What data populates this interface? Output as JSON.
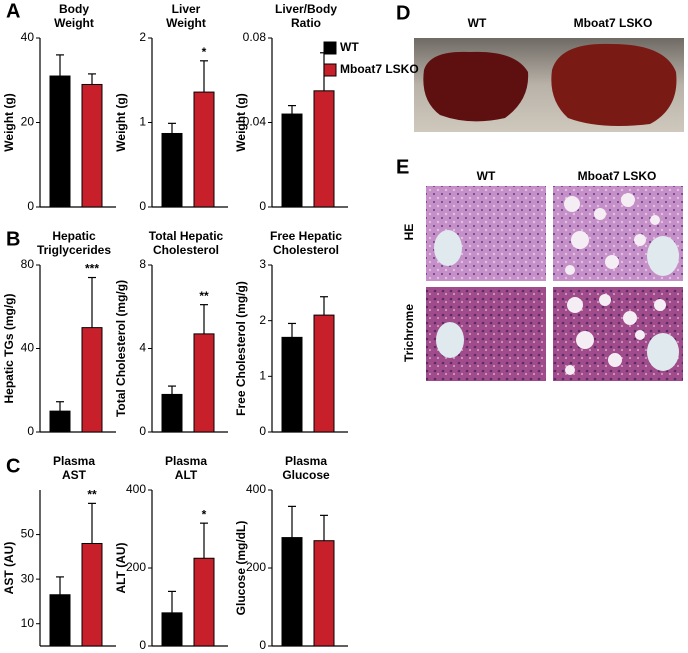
{
  "chart_data": [
    {
      "type": "bar",
      "title": [
        "Body",
        "Weight"
      ],
      "ylabel": "Weight (g)",
      "ylim": [
        0,
        40
      ],
      "yticks": [
        0,
        20,
        40
      ],
      "values": [
        31,
        29
      ],
      "errors": [
        5,
        2.5
      ]
    },
    {
      "type": "bar",
      "title": [
        "Liver",
        "Weight"
      ],
      "ylabel": "Weight (g)",
      "ylim": [
        0,
        2
      ],
      "yticks": [
        0,
        1,
        2
      ],
      "values": [
        0.87,
        1.36
      ],
      "errors": [
        0.12,
        0.37
      ],
      "annotation": "*"
    },
    {
      "type": "bar",
      "title": [
        "Liver/Body",
        "Ratio"
      ],
      "ylabel": "Weight (g)",
      "ylim": [
        0,
        0.08
      ],
      "yticks": [
        0,
        0.04,
        0.08
      ],
      "values": [
        0.044,
        0.055
      ],
      "errors": [
        0.004,
        0.018
      ]
    },
    {
      "type": "bar",
      "title": [
        "Hepatic",
        "Triglycerides"
      ],
      "ylabel": "Hepatic TGs (mg/g)",
      "ylim": [
        0,
        80
      ],
      "yticks": [
        0,
        40,
        80
      ],
      "values": [
        10,
        50
      ],
      "errors": [
        4.5,
        24
      ],
      "annotation": "***"
    },
    {
      "type": "bar",
      "title": [
        "Total Hepatic",
        "Cholesterol"
      ],
      "ylabel": "Total Cholesterol (mg/g)",
      "ylim": [
        0,
        8
      ],
      "yticks": [
        0,
        4,
        8
      ],
      "values": [
        1.8,
        4.7
      ],
      "errors": [
        0.4,
        1.4
      ],
      "annotation": "**"
    },
    {
      "type": "bar",
      "title": [
        "Free Hepatic",
        "Cholesterol"
      ],
      "ylabel": "Free Cholesterol (mg/g)",
      "ylim": [
        0,
        3
      ],
      "yticks": [
        0,
        1,
        2,
        3
      ],
      "values": [
        1.7,
        2.1
      ],
      "errors": [
        0.25,
        0.33
      ]
    },
    {
      "type": "bar",
      "title": [
        "Plasma",
        "AST"
      ],
      "ylabel": "AST (AU)",
      "ylim": [
        0,
        70
      ],
      "yticks": [
        10,
        30,
        50
      ],
      "values": [
        23,
        46
      ],
      "errors": [
        8,
        18
      ],
      "annotation": "**"
    },
    {
      "type": "bar",
      "title": [
        "Plasma",
        "ALT"
      ],
      "ylabel": "ALT (AU)",
      "ylim": [
        0,
        400
      ],
      "yticks": [
        0,
        200,
        400
      ],
      "values": [
        85,
        225
      ],
      "errors": [
        55,
        90
      ],
      "annotation": "*"
    },
    {
      "type": "bar",
      "title": [
        "Plasma",
        "Glucose"
      ],
      "ylabel": "Glucose (mg/dL)",
      "ylim": [
        0,
        400
      ],
      "yticks": [
        0,
        200,
        400
      ],
      "values": [
        278,
        270
      ],
      "errors": [
        80,
        65
      ]
    }
  ],
  "legend": [
    {
      "name": "WT",
      "color": "#000000"
    },
    {
      "name": "Mboat7 LSKO",
      "color": "#c8202a"
    }
  ],
  "panel_labels": [
    "A",
    "B",
    "C",
    "D",
    "E"
  ],
  "images": {
    "D": {
      "columns": [
        "WT",
        "Mboat7 LSKO"
      ]
    },
    "E": {
      "columns": [
        "WT",
        "Mboat7 LSKO"
      ],
      "rows": [
        "HE",
        "Trichrome"
      ]
    }
  }
}
